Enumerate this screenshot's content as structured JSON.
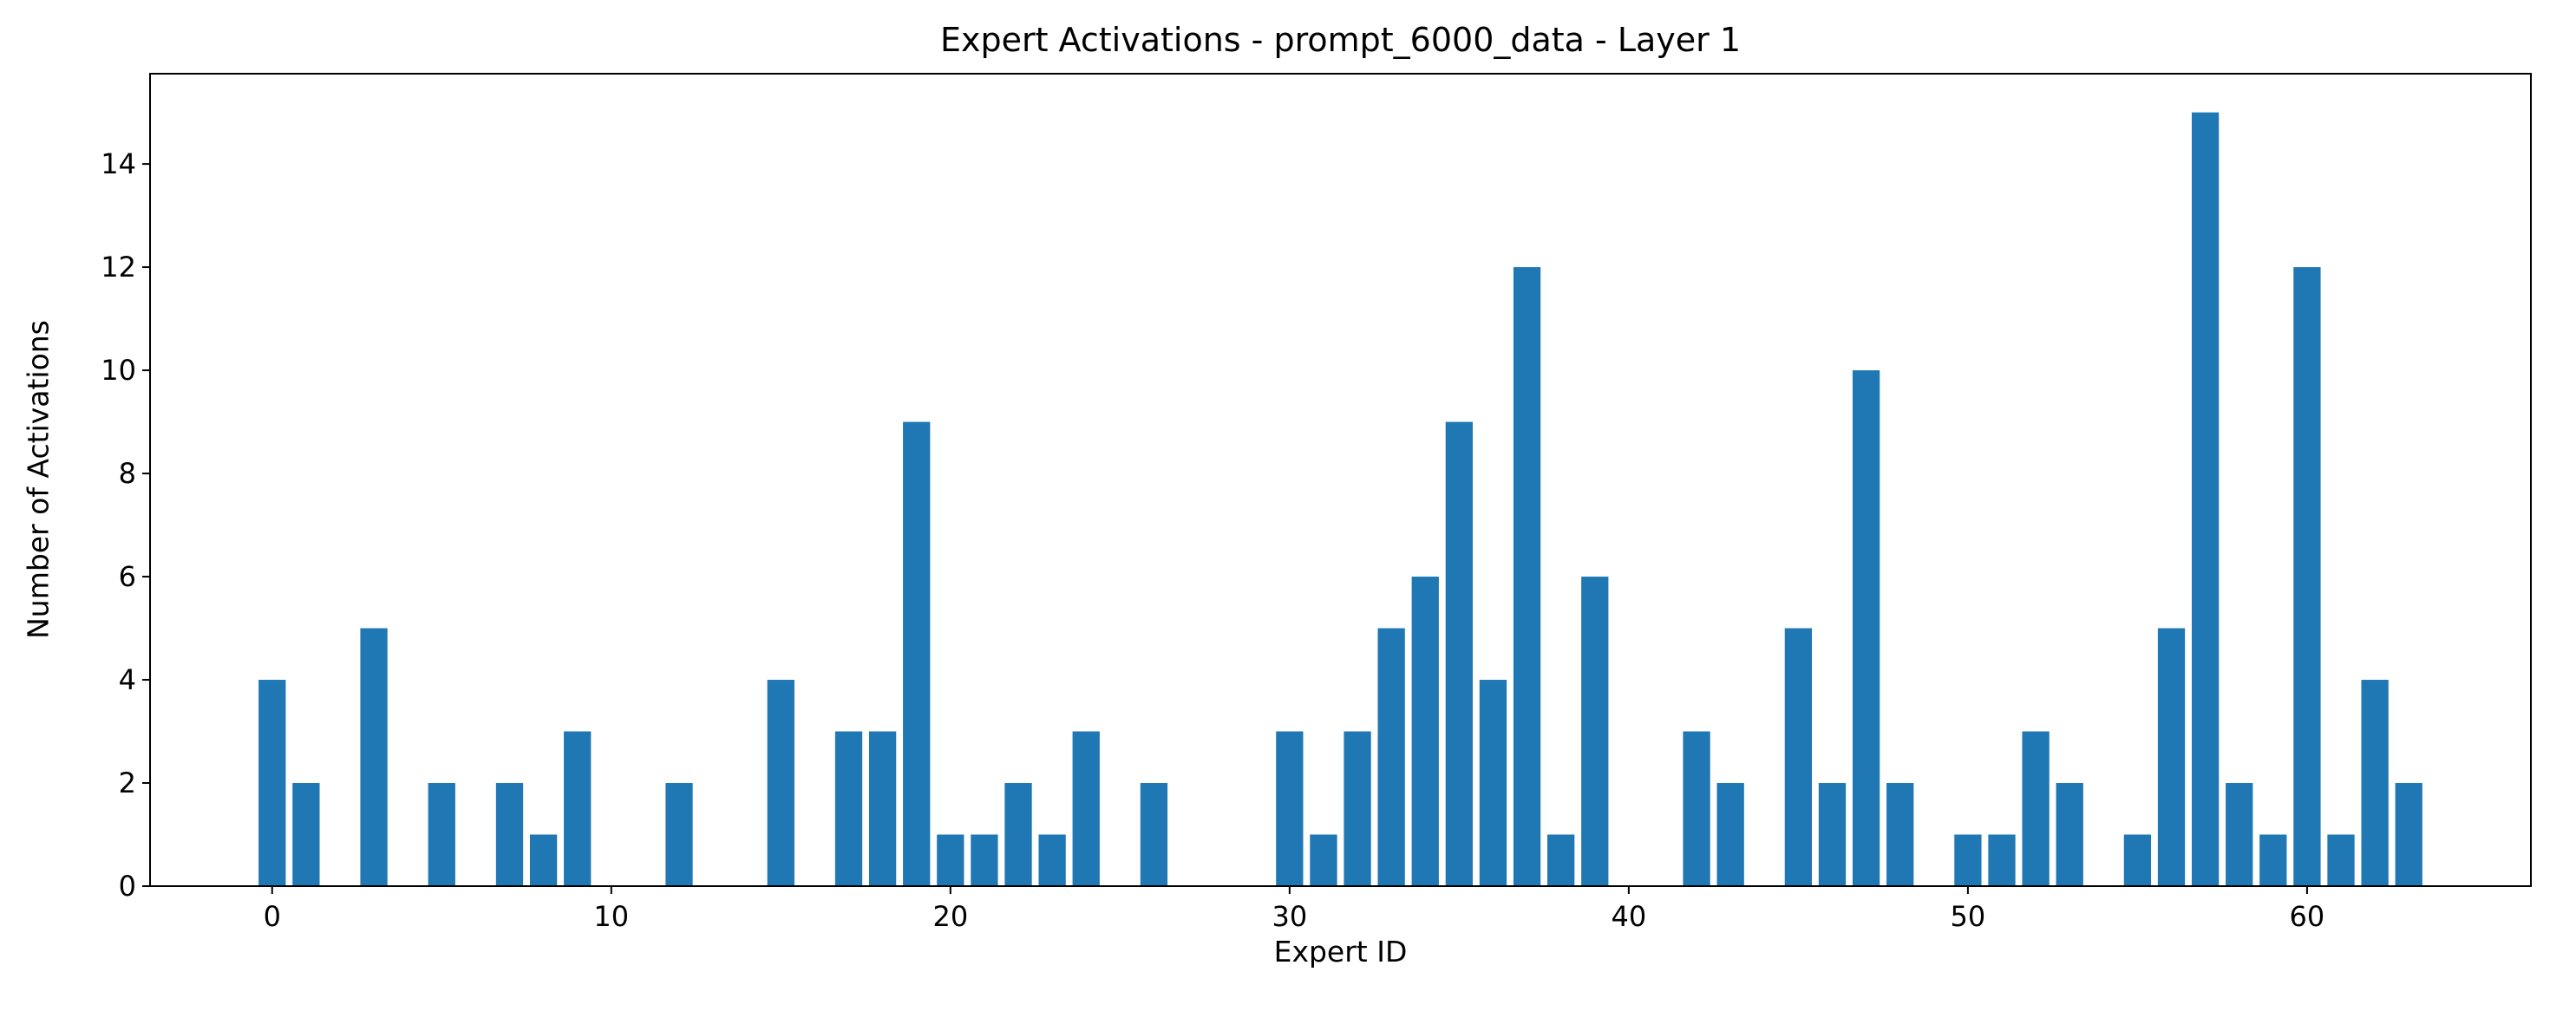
{
  "figure": {
    "background": "#ffffff"
  },
  "chart_data": {
    "type": "bar",
    "title": "Expert Activations - prompt_6000_data - Layer 1",
    "xlabel": "Expert ID",
    "ylabel": "Number of Activations",
    "bar_color": "#1f77b4",
    "axis_color": "#000000",
    "x": [
      0,
      1,
      2,
      3,
      4,
      5,
      6,
      7,
      8,
      9,
      10,
      11,
      12,
      13,
      14,
      15,
      16,
      17,
      18,
      19,
      20,
      21,
      22,
      23,
      24,
      25,
      26,
      27,
      28,
      29,
      30,
      31,
      32,
      33,
      34,
      35,
      36,
      37,
      38,
      39,
      40,
      41,
      42,
      43,
      44,
      45,
      46,
      47,
      48,
      49,
      50,
      51,
      52,
      53,
      54,
      55,
      56,
      57,
      58,
      59,
      60,
      61,
      62,
      63
    ],
    "values": [
      4,
      2,
      0,
      5,
      0,
      2,
      0,
      2,
      1,
      3,
      0,
      0,
      2,
      0,
      0,
      4,
      0,
      3,
      3,
      9,
      1,
      1,
      2,
      1,
      3,
      0,
      2,
      0,
      0,
      0,
      3,
      1,
      3,
      5,
      6,
      9,
      4,
      12,
      1,
      6,
      0,
      0,
      3,
      2,
      0,
      5,
      2,
      10,
      2,
      0,
      1,
      1,
      3,
      2,
      0,
      1,
      5,
      15,
      2,
      1,
      12,
      1,
      4,
      2
    ],
    "xticks": [
      0,
      10,
      20,
      30,
      40,
      50,
      60
    ],
    "yticks": [
      0,
      2,
      4,
      6,
      8,
      10,
      12,
      14
    ],
    "xlim": [
      -3.6,
      66.6
    ],
    "ylim": [
      0,
      15.75
    ],
    "bar_width": 0.8,
    "grid": false
  }
}
